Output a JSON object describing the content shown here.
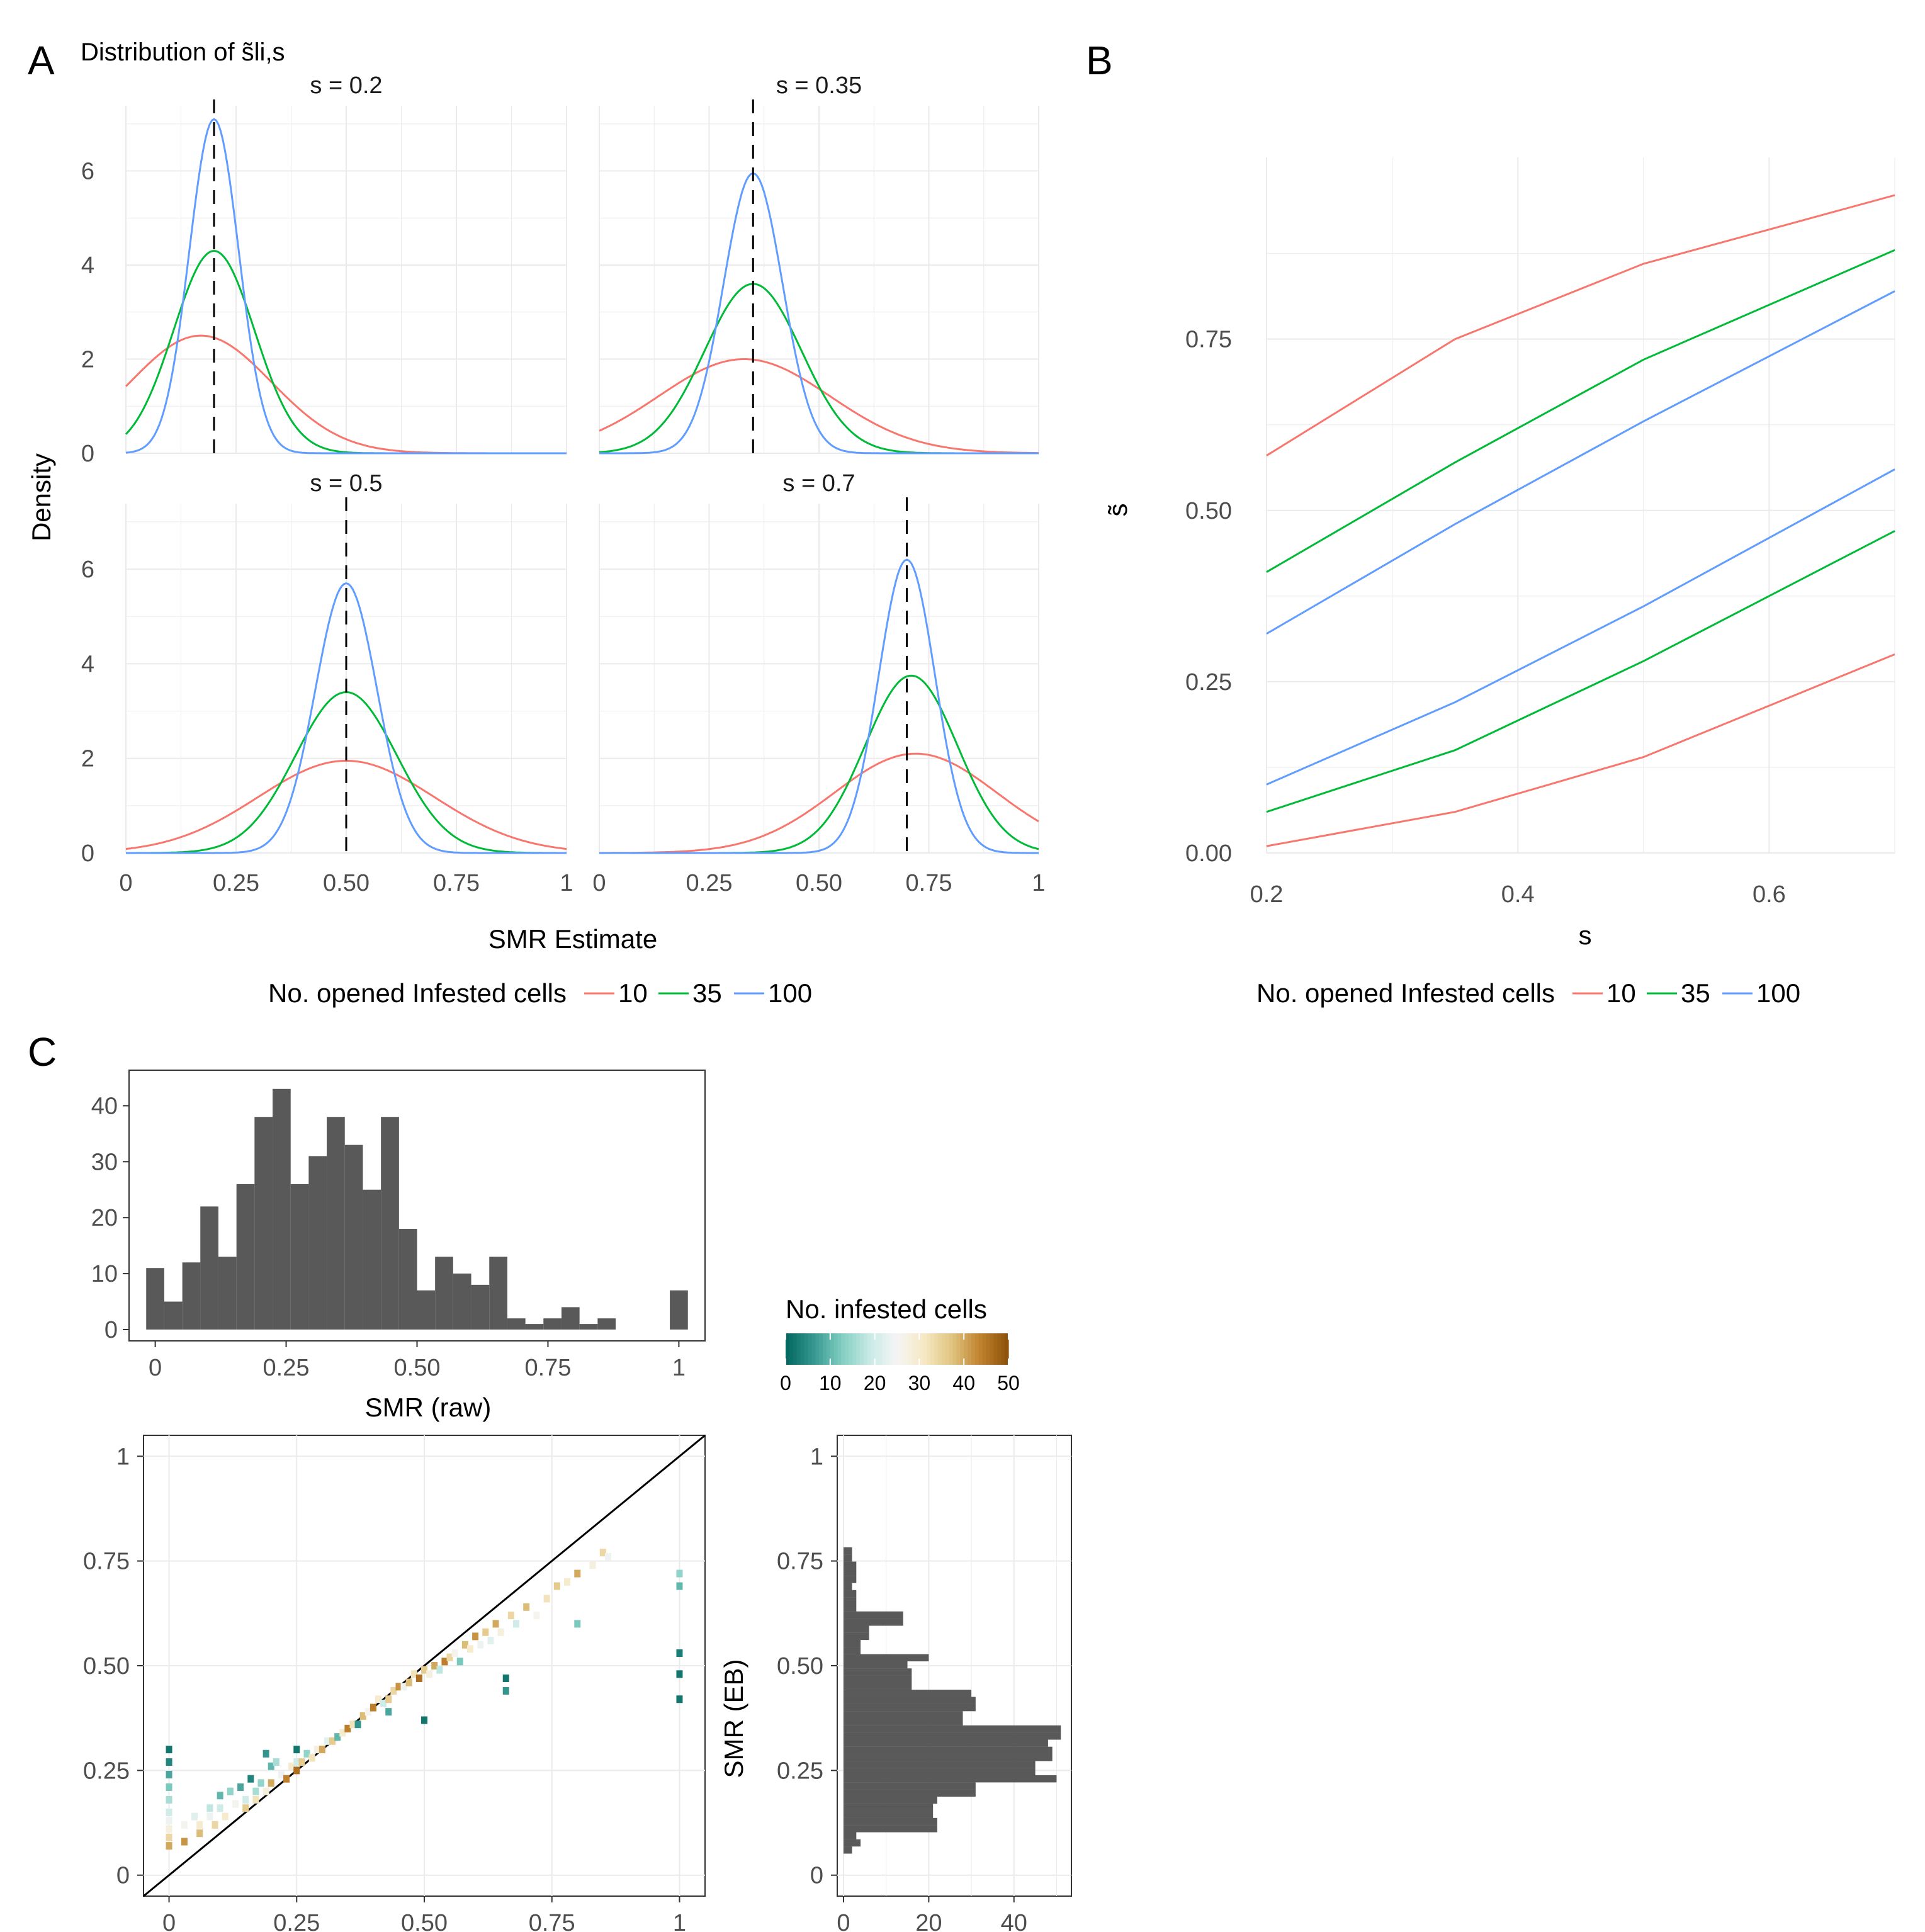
{
  "panel_labels": {
    "a": "A",
    "b": "B",
    "c": "C"
  },
  "colors": {
    "series": {
      "10": "#F8766D",
      "35": "#00BA38",
      "100": "#619CFF"
    },
    "bars": "#595959",
    "grid": "#EBEBEB",
    "palette": [
      "#01665e",
      "#35978f",
      "#80cdc1",
      "#c7eae5",
      "#f5f5f5",
      "#f6e8c3",
      "#dfc27d",
      "#bf812d",
      "#8c510a"
    ]
  },
  "chart_data": [
    {
      "id": "A",
      "type": "line",
      "title": "Distribution of s̃li,s",
      "xlabel": "SMR Estimate",
      "ylabel": "Density",
      "xlim": [
        0,
        1
      ],
      "ylim": [
        0,
        7.2
      ],
      "x_ticks": [
        0,
        0.25,
        0.5,
        0.75,
        1
      ],
      "x_tick_labels": [
        "0",
        "0.25",
        "0.50",
        "0.75",
        "1"
      ],
      "y_ticks": [
        0,
        2,
        4,
        6
      ],
      "y_tick_labels": [
        "0",
        "2",
        "4",
        "6"
      ],
      "facets": [
        {
          "label": "s = 0.2",
          "s": 0.2,
          "series": [
            {
              "name": "10",
              "peak": 0.17,
              "sd": 0.16,
              "height": 2.5
            },
            {
              "name": "35",
              "peak": 0.2,
              "sd": 0.092,
              "height": 4.3
            },
            {
              "name": "100",
              "peak": 0.2,
              "sd": 0.056,
              "height": 7.1
            }
          ]
        },
        {
          "label": "s = 0.35",
          "s": 0.35,
          "series": [
            {
              "name": "10",
              "peak": 0.33,
              "sd": 0.195,
              "height": 2.0
            },
            {
              "name": "35",
              "peak": 0.35,
              "sd": 0.11,
              "height": 3.6
            },
            {
              "name": "100",
              "peak": 0.35,
              "sd": 0.067,
              "height": 5.95
            }
          ]
        },
        {
          "label": "s = 0.5",
          "s": 0.5,
          "series": [
            {
              "name": "10",
              "peak": 0.5,
              "sd": 0.2,
              "height": 1.95
            },
            {
              "name": "35",
              "peak": 0.5,
              "sd": 0.115,
              "height": 3.4
            },
            {
              "name": "100",
              "peak": 0.5,
              "sd": 0.07,
              "height": 5.7
            }
          ]
        },
        {
          "label": "s = 0.7",
          "s": 0.7,
          "series": [
            {
              "name": "10",
              "peak": 0.72,
              "sd": 0.185,
              "height": 2.1
            },
            {
              "name": "35",
              "peak": 0.71,
              "sd": 0.105,
              "height": 3.75
            },
            {
              "name": "100",
              "peak": 0.7,
              "sd": 0.064,
              "height": 6.2
            }
          ]
        }
      ],
      "legend": {
        "title": "No. opened Infested cells",
        "labels": [
          "10",
          "35",
          "100"
        ],
        "position": "bottom"
      }
    },
    {
      "id": "B",
      "type": "line",
      "xlabel": "s",
      "ylabel": "s̃",
      "xlim": [
        0.2,
        0.7
      ],
      "ylim": [
        0,
        1
      ],
      "x_ticks": [
        0.2,
        0.4,
        0.6
      ],
      "x_tick_labels": [
        "0.2",
        "0.4",
        "0.6"
      ],
      "y_ticks": [
        0,
        0.25,
        0.5,
        0.75
      ],
      "y_tick_labels": [
        "0.00",
        "0.25",
        "0.50",
        "0.75"
      ],
      "x": [
        0.2,
        0.35,
        0.5,
        0.7
      ],
      "series": [
        {
          "name": "10",
          "bound": "upper",
          "values": [
            0.58,
            0.75,
            0.86,
            0.96
          ]
        },
        {
          "name": "35",
          "bound": "upper",
          "values": [
            0.41,
            0.57,
            0.72,
            0.88
          ]
        },
        {
          "name": "100",
          "bound": "upper",
          "values": [
            0.32,
            0.48,
            0.63,
            0.82
          ]
        },
        {
          "name": "100",
          "bound": "lower",
          "values": [
            0.1,
            0.22,
            0.36,
            0.56
          ]
        },
        {
          "name": "35",
          "bound": "lower",
          "values": [
            0.06,
            0.15,
            0.28,
            0.47
          ]
        },
        {
          "name": "10",
          "bound": "lower",
          "values": [
            0.01,
            0.06,
            0.14,
            0.29
          ]
        }
      ],
      "legend": {
        "title": "No. opened Infested cells",
        "labels": [
          "10",
          "35",
          "100"
        ],
        "position": "bottom"
      }
    },
    {
      "id": "C-top",
      "type": "bar",
      "xlabel": "SMR (raw)",
      "ylabel": "",
      "xlim": [
        -0.05,
        1.05
      ],
      "ylim": [
        0,
        45
      ],
      "bin_width": 0.0345,
      "x_ticks": [
        0,
        0.25,
        0.5,
        0.75,
        1
      ],
      "x_tick_labels": [
        "0",
        "0.25",
        "0.50",
        "0.75",
        "1"
      ],
      "y_ticks": [
        0,
        10,
        20,
        30,
        40
      ],
      "y_tick_labels": [
        "0",
        "10",
        "20",
        "30",
        "40"
      ],
      "bin_centers": [
        0,
        0.0345,
        0.069,
        0.1034,
        0.1379,
        0.1724,
        0.2069,
        0.2414,
        0.2759,
        0.3103,
        0.3448,
        0.3793,
        0.4138,
        0.4483,
        0.4828,
        0.5172,
        0.5517,
        0.5862,
        0.6207,
        0.6552,
        0.6897,
        0.7241,
        0.7586,
        0.7931,
        0.8276,
        0.8621,
        1.0
      ],
      "counts": [
        11,
        5,
        12,
        22,
        13,
        26,
        38,
        43,
        26,
        31,
        38,
        33,
        25,
        38,
        18,
        7,
        13,
        10,
        8,
        13,
        2,
        1,
        2,
        4,
        1,
        2,
        7
      ]
    },
    {
      "id": "C-main",
      "type": "scatter",
      "xlabel": "",
      "ylabel": "",
      "xlim": [
        -0.05,
        1.05
      ],
      "ylim": [
        -0.05,
        1.05
      ],
      "x_ticks": [
        0,
        0.25,
        0.5,
        0.75,
        1
      ],
      "x_tick_labels": [
        "0",
        "0.25",
        "0.50",
        "0.75",
        "1"
      ],
      "y_ticks": [
        0,
        0.25,
        0.5,
        0.75,
        1
      ],
      "y_tick_labels": [
        "0",
        "0.25",
        "0.50",
        "0.75",
        "1"
      ],
      "reference_line": "y = x",
      "color_by": "No. infested cells",
      "points": [
        [
          0,
          0.3,
          2
        ],
        [
          0,
          0.27,
          4
        ],
        [
          0,
          0.24,
          8
        ],
        [
          0,
          0.21,
          12
        ],
        [
          0,
          0.18,
          16
        ],
        [
          0,
          0.15,
          20
        ],
        [
          0,
          0.13,
          24
        ],
        [
          0,
          0.11,
          28
        ],
        [
          0,
          0.09,
          34
        ],
        [
          0,
          0.07,
          40
        ],
        [
          0.03,
          0.12,
          26
        ],
        [
          0.03,
          0.08,
          42
        ],
        [
          0.05,
          0.14,
          22
        ],
        [
          0.06,
          0.12,
          30
        ],
        [
          0.06,
          0.1,
          38
        ],
        [
          0.08,
          0.16,
          18
        ],
        [
          0.08,
          0.14,
          24
        ],
        [
          0.09,
          0.12,
          34
        ],
        [
          0.1,
          0.19,
          10
        ],
        [
          0.1,
          0.16,
          20
        ],
        [
          0.11,
          0.14,
          30
        ],
        [
          0.12,
          0.2,
          14
        ],
        [
          0.13,
          0.17,
          26
        ],
        [
          0.14,
          0.21,
          8
        ],
        [
          0.15,
          0.18,
          20
        ],
        [
          0.15,
          0.16,
          36
        ],
        [
          0.16,
          0.23,
          4
        ],
        [
          0.17,
          0.2,
          16
        ],
        [
          0.17,
          0.18,
          32
        ],
        [
          0.18,
          0.22,
          14
        ],
        [
          0.19,
          0.29,
          6
        ],
        [
          0.19,
          0.2,
          28
        ],
        [
          0.2,
          0.26,
          10
        ],
        [
          0.2,
          0.22,
          40
        ],
        [
          0.21,
          0.27,
          16
        ],
        [
          0.22,
          0.24,
          24
        ],
        [
          0.23,
          0.23,
          44
        ],
        [
          0.24,
          0.26,
          30
        ],
        [
          0.25,
          0.3,
          2
        ],
        [
          0.25,
          0.27,
          20
        ],
        [
          0.25,
          0.25,
          46
        ],
        [
          0.26,
          0.27,
          36
        ],
        [
          0.27,
          0.29,
          14
        ],
        [
          0.28,
          0.28,
          32
        ],
        [
          0.29,
          0.3,
          28
        ],
        [
          0.3,
          0.3,
          40
        ],
        [
          0.31,
          0.32,
          22
        ],
        [
          0.32,
          0.32,
          36
        ],
        [
          0.33,
          0.33,
          10
        ],
        [
          0.34,
          0.34,
          30
        ],
        [
          0.35,
          0.35,
          44
        ],
        [
          0.36,
          0.36,
          32
        ],
        [
          0.37,
          0.36,
          6
        ],
        [
          0.38,
          0.38,
          38
        ],
        [
          0.39,
          0.39,
          26
        ],
        [
          0.4,
          0.4,
          44
        ],
        [
          0.41,
          0.42,
          30
        ],
        [
          0.42,
          0.41,
          20
        ],
        [
          0.43,
          0.42,
          36
        ],
        [
          0.43,
          0.39,
          8
        ],
        [
          0.44,
          0.44,
          34
        ],
        [
          0.45,
          0.45,
          42
        ],
        [
          0.46,
          0.45,
          24
        ],
        [
          0.47,
          0.46,
          38
        ],
        [
          0.48,
          0.48,
          32
        ],
        [
          0.49,
          0.47,
          46
        ],
        [
          0.5,
          0.37,
          2
        ],
        [
          0.5,
          0.49,
          36
        ],
        [
          0.51,
          0.48,
          28
        ],
        [
          0.52,
          0.5,
          40
        ],
        [
          0.53,
          0.49,
          18
        ],
        [
          0.54,
          0.51,
          44
        ],
        [
          0.55,
          0.52,
          34
        ],
        [
          0.56,
          0.53,
          26
        ],
        [
          0.57,
          0.51,
          12
        ],
        [
          0.58,
          0.55,
          38
        ],
        [
          0.59,
          0.54,
          30
        ],
        [
          0.6,
          0.57,
          42
        ],
        [
          0.61,
          0.55,
          24
        ],
        [
          0.62,
          0.58,
          36
        ],
        [
          0.63,
          0.56,
          22
        ],
        [
          0.64,
          0.6,
          40
        ],
        [
          0.65,
          0.58,
          28
        ],
        [
          0.66,
          0.47,
          2
        ],
        [
          0.66,
          0.44,
          6
        ],
        [
          0.67,
          0.62,
          34
        ],
        [
          0.68,
          0.6,
          20
        ],
        [
          0.7,
          0.64,
          38
        ],
        [
          0.72,
          0.62,
          26
        ],
        [
          0.74,
          0.66,
          32
        ],
        [
          0.76,
          0.69,
          36
        ],
        [
          0.78,
          0.7,
          30
        ],
        [
          0.8,
          0.72,
          40
        ],
        [
          0.8,
          0.6,
          12
        ],
        [
          0.83,
          0.74,
          28
        ],
        [
          0.85,
          0.77,
          34
        ],
        [
          0.86,
          0.76,
          24
        ],
        [
          1,
          0.72,
          14
        ],
        [
          1,
          0.69,
          10
        ],
        [
          1,
          0.53,
          3
        ],
        [
          1,
          0.48,
          2
        ],
        [
          1,
          0.42,
          2
        ]
      ]
    },
    {
      "id": "C-right",
      "type": "bar",
      "orientation": "horizontal",
      "xlabel": "",
      "ylabel": "SMR (EB)",
      "xlim": [
        0,
        52
      ],
      "ylim": [
        -0.05,
        1.05
      ],
      "bin_width": 0.0172,
      "x_ticks": [
        0,
        20,
        40
      ],
      "x_tick_labels": [
        "0",
        "20",
        "40"
      ],
      "y_ticks": [
        0,
        0.25,
        0.5,
        0.75,
        1
      ],
      "y_tick_labels": [
        "0",
        "0.25",
        "0.50",
        "0.75",
        "1"
      ],
      "bin_centers": [
        0.06,
        0.077,
        0.094,
        0.111,
        0.128,
        0.145,
        0.162,
        0.179,
        0.196,
        0.213,
        0.23,
        0.247,
        0.264,
        0.281,
        0.298,
        0.315,
        0.332,
        0.349,
        0.366,
        0.383,
        0.4,
        0.417,
        0.434,
        0.451,
        0.468,
        0.485,
        0.502,
        0.519,
        0.536,
        0.553,
        0.57,
        0.587,
        0.604,
        0.621,
        0.638,
        0.655,
        0.672,
        0.689,
        0.706,
        0.723,
        0.74,
        0.757,
        0.774
      ],
      "counts": [
        2,
        4,
        3,
        22,
        22,
        21,
        21,
        22,
        31,
        31,
        50,
        45,
        45,
        49,
        49,
        48,
        51,
        51,
        28,
        28,
        31,
        31,
        30,
        16,
        16,
        16,
        15,
        20,
        4,
        4,
        6,
        6,
        14,
        14,
        3,
        3,
        3,
        2,
        3,
        3,
        3,
        2,
        2
      ]
    }
  ],
  "legend_c": {
    "title": "No. infested cells",
    "labels": [
      "0",
      "10",
      "20",
      "30",
      "40",
      "50"
    ],
    "max": 50
  }
}
